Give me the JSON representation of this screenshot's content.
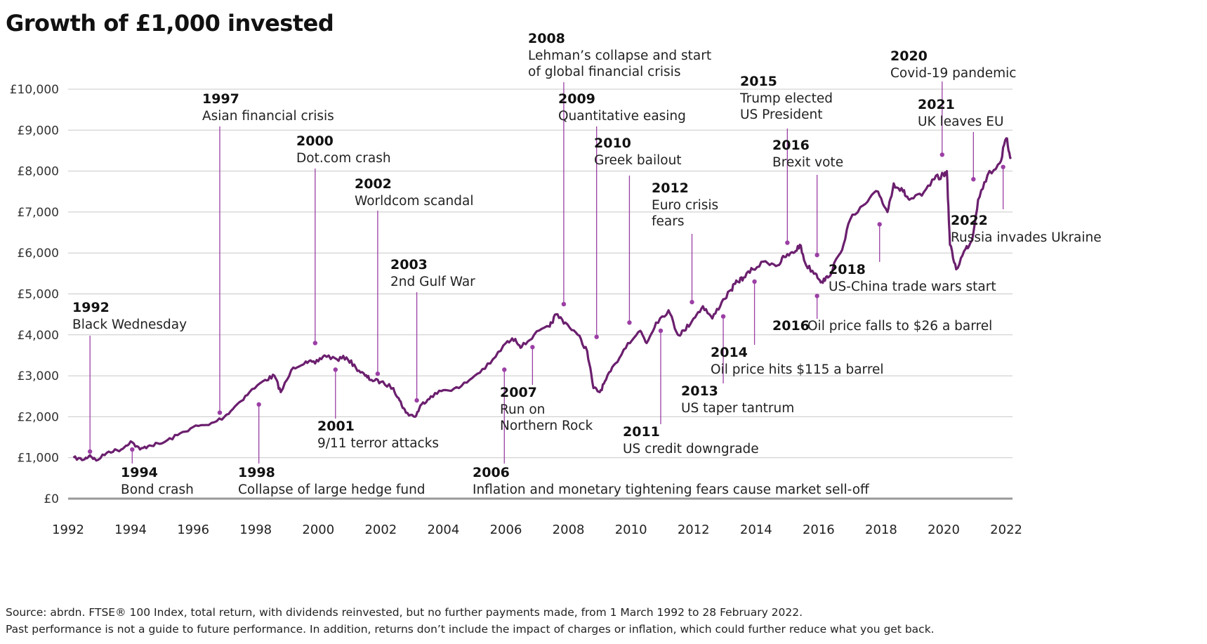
{
  "title": "Growth of £1,000 invested",
  "footnotes": [
    "Source: abrdn. FTSE® 100 Index, total return, with dividends reinvested, but no further payments made, from 1 March 1992 to 28 February 2022.",
    "Past performance is not a guide to future performance. In addition, returns don’t include the impact of charges or inflation, which could further reduce what you get back."
  ],
  "colors": {
    "line": "#6b1f6e",
    "marker": "#9b3fa5",
    "grid": "#c8c8c8",
    "axis": "#9a9a9a"
  },
  "chart_data": {
    "type": "line",
    "title": "Growth of £1,000 invested",
    "xlabel": "",
    "ylabel": "",
    "xlim": [
      1992,
      2022.2
    ],
    "ylim": [
      0,
      10000
    ],
    "grid": "horizontal",
    "x_ticks": [
      "1992",
      "1994",
      "1996",
      "1998",
      "2000",
      "2002",
      "2004",
      "2006",
      "2008",
      "2010",
      "2012",
      "2014",
      "2016",
      "2018",
      "2020",
      "2022"
    ],
    "y_ticks": [
      "£0",
      "£1,000",
      "£2,000",
      "£3,000",
      "£4,000",
      "£5,000",
      "£6,000",
      "£7,000",
      "£8,000",
      "£9,000",
      "£10,000"
    ],
    "series": [
      {
        "x": [
          1992.17,
          1992.5,
          1992.7,
          1992.9,
          1993.3,
          1993.7,
          1994.0,
          1994.3,
          1994.6,
          1995.0,
          1995.5,
          1996.0,
          1996.5,
          1997.0,
          1997.4,
          1997.8,
          1998.3,
          1998.6,
          1998.8,
          1999.2,
          1999.6,
          1999.9,
          2000.2,
          2000.6,
          2000.9,
          2001.2,
          2001.5,
          2001.7,
          2002.0,
          2002.4,
          2002.6,
          2002.8,
          2003.1,
          2003.3,
          2003.6,
          2004.0,
          2004.5,
          2005.0,
          2005.5,
          2006.0,
          2006.3,
          2006.5,
          2006.9,
          2007.4,
          2007.6,
          2007.9,
          2008.3,
          2008.6,
          2008.8,
          2009.0,
          2009.2,
          2009.5,
          2009.9,
          2010.3,
          2010.5,
          2010.8,
          2011.2,
          2011.5,
          2011.7,
          2012.0,
          2012.3,
          2012.6,
          2012.9,
          2013.2,
          2013.4,
          2013.6,
          2013.9,
          2014.3,
          2014.7,
          2014.9,
          2015.2,
          2015.4,
          2015.6,
          2015.9,
          2016.1,
          2016.3,
          2016.7,
          2017.0,
          2017.5,
          2017.9,
          2018.2,
          2018.4,
          2018.7,
          2018.9,
          2019.3,
          2019.7,
          2020.0,
          2020.1,
          2020.2,
          2020.4,
          2020.7,
          2020.9,
          2021.1,
          2021.4,
          2021.8,
          2022.0,
          2022.15
        ],
        "values": [
          1000,
          950,
          1060,
          930,
          1150,
          1200,
          1400,
          1200,
          1300,
          1350,
          1550,
          1750,
          1800,
          2000,
          2300,
          2600,
          2900,
          3000,
          2600,
          3200,
          3350,
          3300,
          3500,
          3400,
          3450,
          3200,
          3000,
          2900,
          2850,
          2700,
          2400,
          2100,
          2000,
          2300,
          2500,
          2650,
          2700,
          3000,
          3300,
          3800,
          3900,
          3700,
          4000,
          4200,
          4500,
          4300,
          4000,
          3600,
          2700,
          2600,
          2900,
          3300,
          3800,
          4100,
          3800,
          4300,
          4600,
          4000,
          4100,
          4400,
          4700,
          4400,
          4800,
          5100,
          5300,
          5400,
          5600,
          5800,
          5700,
          5900,
          6000,
          6200,
          5700,
          5500,
          5300,
          5400,
          6000,
          6800,
          7200,
          7500,
          7000,
          7700,
          7500,
          7300,
          7400,
          7800,
          7900,
          8000,
          6200,
          5600,
          6100,
          6300,
          7300,
          7900,
          8200,
          8800,
          8300
        ]
      }
    ],
    "annotations": [
      {
        "year": "1992",
        "text": [
          "Black Wednesday"
        ],
        "x": 1992.7,
        "y": 1150
      },
      {
        "year": "1994",
        "text": [
          "Bond crash"
        ],
        "x": 1994.05,
        "y": 1200
      },
      {
        "year": "1997",
        "text": [
          "Asian financial crisis"
        ],
        "x": 1996.85,
        "y": 2100
      },
      {
        "year": "1998",
        "text": [
          "Collapse of large hedge fund"
        ],
        "x": 1998.1,
        "y": 2300
      },
      {
        "year": "2000",
        "text": [
          "Dot.com crash"
        ],
        "x": 1999.9,
        "y": 3800
      },
      {
        "year": "2001",
        "text": [
          "9/11 terror attacks"
        ],
        "x": 2000.55,
        "y": 3150
      },
      {
        "year": "2002",
        "text": [
          "Worldcom scandal"
        ],
        "x": 2001.9,
        "y": 3050
      },
      {
        "year": "2003",
        "text": [
          "2nd Gulf War"
        ],
        "x": 2003.15,
        "y": 2400
      },
      {
        "year": "2006",
        "text": [
          "Inflation and monetary tightening fears cause market sell-off"
        ],
        "x": 2005.95,
        "y": 3150
      },
      {
        "year": "2007",
        "text": [
          "Run on",
          "Northern Rock"
        ],
        "x": 2006.85,
        "y": 3700
      },
      {
        "year": "2008",
        "text": [
          "Lehman’s collapse and start",
          "of global financial crisis"
        ],
        "x": 2007.85,
        "y": 4750
      },
      {
        "year": "2009",
        "text": [
          "Quantitative easing"
        ],
        "x": 2008.9,
        "y": 3950
      },
      {
        "year": "2010",
        "text": [
          "Greek bailout"
        ],
        "x": 2009.95,
        "y": 4300
      },
      {
        "year": "2011",
        "text": [
          "US credit downgrade"
        ],
        "x": 2010.95,
        "y": 4100
      },
      {
        "year": "2012",
        "text": [
          "Euro crisis",
          "fears"
        ],
        "x": 2011.95,
        "y": 4800
      },
      {
        "year": "2013",
        "text": [
          "US taper tantrum"
        ],
        "x": 2012.95,
        "y": 4450
      },
      {
        "year": "2014",
        "text": [
          "Oil price hits $115 a barrel"
        ],
        "x": 2013.95,
        "y": 5300
      },
      {
        "year": "2015",
        "text": [
          "Trump elected",
          "US President"
        ],
        "x": 2015.0,
        "y": 6250
      },
      {
        "year": "2016",
        "text": [
          "Brexit vote"
        ],
        "x": 2015.95,
        "y": 5950
      },
      {
        "year": "2016",
        "text": [
          "Oil price falls to $26 a barrel"
        ],
        "x": 2015.95,
        "y": 4950
      },
      {
        "year": "2018",
        "text": [
          "US-China trade wars start"
        ],
        "x": 2017.95,
        "y": 6700
      },
      {
        "year": "2020",
        "text": [
          "Covid-19 pandemic"
        ],
        "x": 2019.95,
        "y": 8400
      },
      {
        "year": "2021",
        "text": [
          "UK leaves EU"
        ],
        "x": 2020.95,
        "y": 7800
      },
      {
        "year": "2022",
        "text": [
          "Russia invades Ukraine"
        ],
        "x": 2021.9,
        "y": 8100
      }
    ]
  }
}
